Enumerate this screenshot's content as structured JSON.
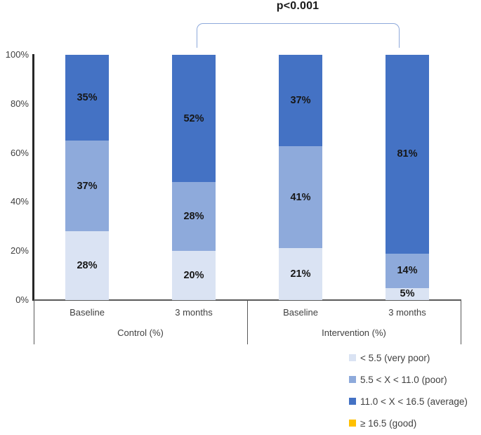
{
  "annotation": {
    "p_value": "p<0.001"
  },
  "chart_data": {
    "type": "bar",
    "subtype": "100-percent-stacked-column",
    "title": "",
    "xlabel": "",
    "ylabel": "",
    "ylim": [
      0,
      100
    ],
    "y_ticks": [
      "100%",
      "80%",
      "60%",
      "40%",
      "20%",
      "0%"
    ],
    "grid": false,
    "legend_position": "bottom-right",
    "groups": [
      {
        "label": "Control (%)",
        "categories": [
          "Baseline",
          "3 months"
        ]
      },
      {
        "label": "Intervention (%)",
        "categories": [
          "Baseline",
          "3 months"
        ]
      }
    ],
    "categories": [
      "Baseline",
      "3 months",
      "Baseline",
      "3 months"
    ],
    "series": [
      {
        "name": "< 5.5 (very poor)",
        "color": "#dae3f3",
        "values": [
          28,
          20,
          21,
          5
        ]
      },
      {
        "name": "5.5 < X < 11.0 (poor)",
        "color": "#8eaadb",
        "values": [
          37,
          28,
          41,
          14
        ]
      },
      {
        "name": "11.0 < X < 16.5 (average)",
        "color": "#4472c4",
        "values": [
          35,
          52,
          37,
          81
        ]
      },
      {
        "name": "≥ 16.5 (good)",
        "color": "#ffc000",
        "values": [
          0,
          0,
          0,
          0
        ]
      }
    ],
    "significance": {
      "label": "p<0.001",
      "between": [
        "Control (%) – 3 months",
        "Intervention (%) – 3 months"
      ]
    }
  },
  "colors": {
    "y_axis_line": "#262626",
    "x_axis_line": "#595959",
    "bracket": "#8ea9db",
    "segment_label_text": "#171717",
    "axis_text": "#404040"
  }
}
